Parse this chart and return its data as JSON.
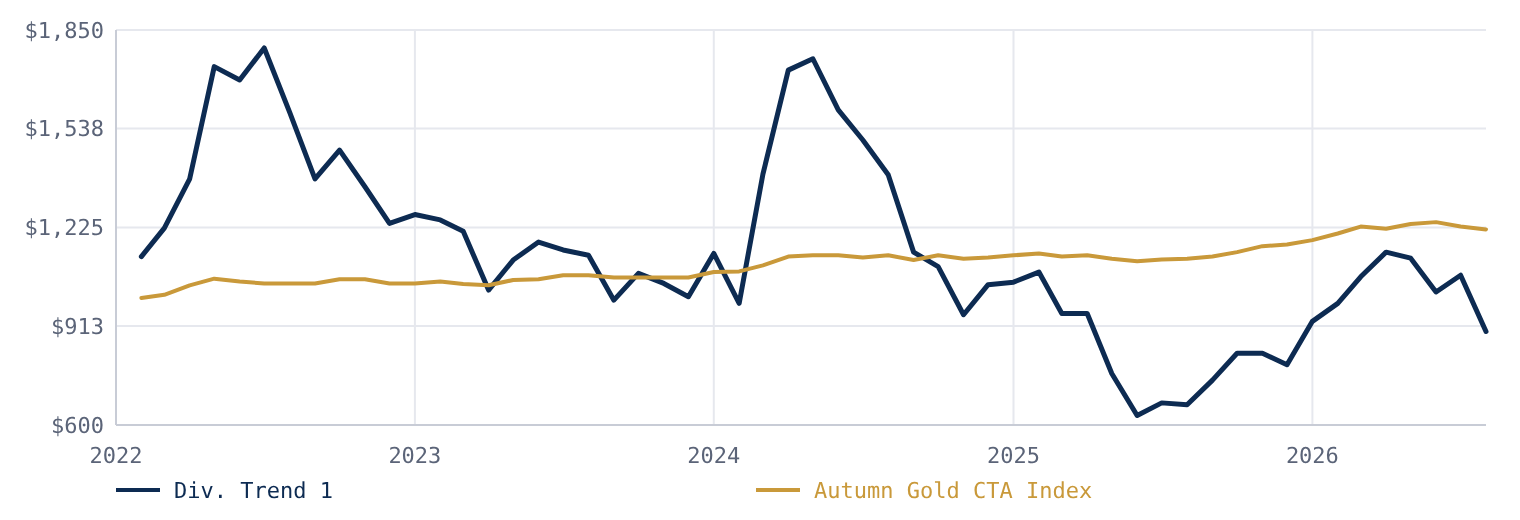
{
  "chart_data": {
    "type": "line",
    "x": [
      "2022-02",
      "2022-03",
      "2022-04",
      "2022-05",
      "2022-06",
      "2022-07",
      "2022-08",
      "2022-09",
      "2022-10",
      "2022-11",
      "2022-12",
      "2023-01",
      "2023-02",
      "2023-03",
      "2023-04",
      "2023-05",
      "2023-06",
      "2023-07",
      "2023-08",
      "2023-09",
      "2023-10",
      "2023-11",
      "2023-12",
      "2024-01",
      "2024-02",
      "2024-03",
      "2024-04",
      "2024-05",
      "2024-06",
      "2024-07",
      "2024-08",
      "2024-09",
      "2024-10",
      "2024-11",
      "2024-12",
      "2025-01",
      "2025-02",
      "2025-03",
      "2025-04",
      "2025-05",
      "2025-06",
      "2025-07",
      "2025-08",
      "2025-09",
      "2025-10",
      "2025-11",
      "2025-12",
      "2026-01",
      "2026-02",
      "2026-03",
      "2026-04",
      "2026-05",
      "2026-06",
      "2026-07",
      "2026-08"
    ],
    "series": [
      {
        "name": "Div. Trend 1",
        "color": "#0d2b52",
        "values": [
          1133,
          1223,
          1379,
          1734,
          1692,
          1793,
          1590,
          1379,
          1470,
          1354,
          1238,
          1266,
          1249,
          1213,
          1027,
          1122,
          1179,
          1154,
          1137,
          995,
          1080,
          1048,
          1006,
          1143,
          985,
          1394,
          1723,
          1759,
          1597,
          1502,
          1392,
          1147,
          1101,
          949,
          1044,
          1052,
          1084,
          953,
          953,
          763,
          630,
          670,
          664,
          742,
          827,
          827,
          791,
          928,
          985,
          1069,
          1147,
          1128,
          1021,
          1074,
          896
        ]
      },
      {
        "name": "Autumn Gold CTA Index",
        "color": "#c9993a",
        "values": [
          1002,
          1012,
          1042,
          1063,
          1054,
          1048,
          1048,
          1048,
          1061,
          1061,
          1048,
          1048,
          1054,
          1046,
          1042,
          1059,
          1061,
          1074,
          1074,
          1067,
          1067,
          1067,
          1067,
          1084,
          1086,
          1105,
          1133,
          1137,
          1137,
          1130,
          1137,
          1122,
          1137,
          1126,
          1130,
          1137,
          1143,
          1133,
          1137,
          1126,
          1118,
          1124,
          1126,
          1133,
          1147,
          1166,
          1171,
          1185,
          1206,
          1228,
          1221,
          1236,
          1242,
          1228,
          1219
        ]
      }
    ],
    "xlim": [
      "2022-01",
      "2026-08"
    ],
    "xticks": [
      {
        "value": "2022-01",
        "label": "2022"
      },
      {
        "value": "2023-01",
        "label": "2023"
      },
      {
        "value": "2024-01",
        "label": "2024"
      },
      {
        "value": "2025-01",
        "label": "2025"
      },
      {
        "value": "2026-01",
        "label": "2026"
      }
    ],
    "ylim": [
      600,
      1850
    ],
    "yticks": [
      {
        "value": 600,
        "label": "$600"
      },
      {
        "value": 913,
        "label": "$913"
      },
      {
        "value": 1225,
        "label": "$1,225"
      },
      {
        "value": 1538,
        "label": "$1,538"
      },
      {
        "value": 1850,
        "label": "$1,850"
      }
    ],
    "grid": true,
    "legend": "bottom",
    "marker": "none",
    "line_style": "solid"
  }
}
